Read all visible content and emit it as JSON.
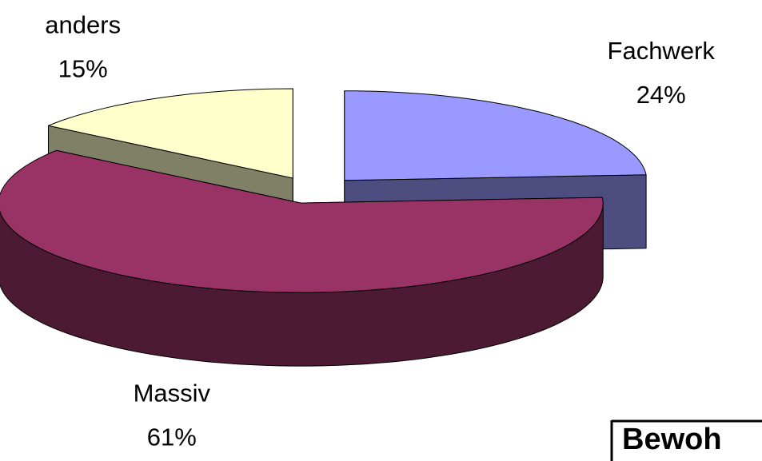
{
  "chart_data": {
    "type": "pie",
    "categories": [
      "Fachwerk",
      "Massiv",
      "anders"
    ],
    "values": [
      24,
      61,
      15
    ],
    "value_labels": [
      "24%",
      "61%",
      "15%"
    ],
    "colors": [
      "#9999ff",
      "#993366",
      "#ffffcc"
    ],
    "annotation": "Bewoh"
  }
}
